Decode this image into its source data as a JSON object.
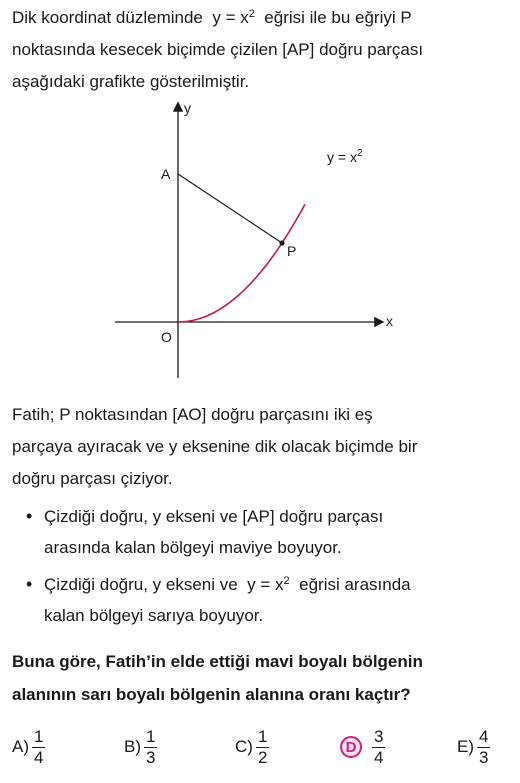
{
  "intro": {
    "line1_a": "Dik koordinat düzleminde",
    "line1_eq_base": "y = x",
    "line1_eq_exp": "2",
    "line1_b": "eğrisi ile bu eğriyi  P",
    "line2": "noktasında kesecek biçimde çizilen  [AP]  doğru parçası",
    "line3": "aşağıdaki grafikte gösterilmiştir."
  },
  "figure": {
    "y_axis_label": "y",
    "x_axis_label": "x",
    "point_a": "A",
    "point_p": "P",
    "origin": "O",
    "curve_label_base": "y = x",
    "curve_label_exp": "2",
    "curve_color": "#c2185b",
    "axis_color": "#1a1a1a"
  },
  "fatih": {
    "line1": "Fatih;  P  noktasından  [AO]  doğru parçasını iki eş",
    "line2": "parçaya ayıracak ve  y  eksenine dik olacak biçimde bir",
    "line3": "doğru parçası çiziyor."
  },
  "bullets": [
    {
      "line1": "Çizdiği doğru,  y  ekseni ve  [AP]  doğru parçası",
      "line2": "arasında kalan bölgeyi maviye boyuyor."
    },
    {
      "line1_a": "Çizdiği doğru,  y  ekseni ve",
      "line1_eq_base": "y = x",
      "line1_eq_exp": "2",
      "line1_b": "eğrisi arasında",
      "line2": "kalan bölgeyi sarıya boyuyor."
    }
  ],
  "question": {
    "line1": "Buna göre, Fatih’in elde ettiği mavi boyalı bölgenin",
    "line2": "alanının sarı boyalı bölgenin alanına oranı kaçtır?"
  },
  "options": [
    {
      "letter": "A)",
      "num": "1",
      "den": "4"
    },
    {
      "letter": "B)",
      "num": "1",
      "den": "3"
    },
    {
      "letter": "C)",
      "num": "1",
      "den": "2"
    },
    {
      "letter": "D",
      "num": "3",
      "den": "4",
      "selected": true
    },
    {
      "letter": "E)",
      "num": "4",
      "den": "3"
    }
  ],
  "accent_color": "#d1207a"
}
